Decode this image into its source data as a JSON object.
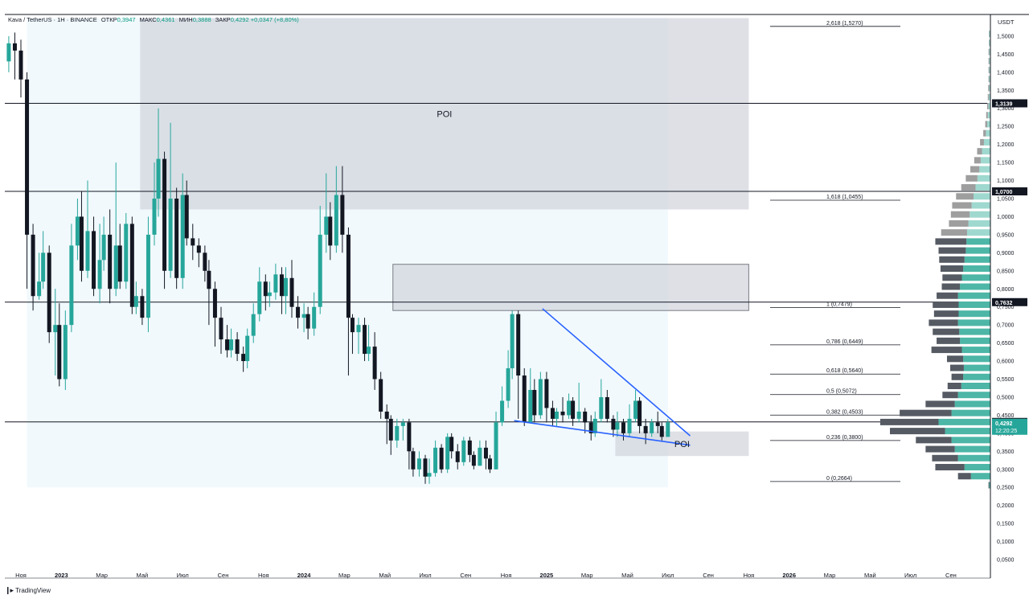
{
  "header": {
    "symbol": "Kava / TetherUS · 1H · BINANCE",
    "open_label": "ОТКР",
    "open": "0,3947",
    "high_label": "МАКС",
    "high": "0,4361",
    "low_label": "МИН",
    "low": "0,3888",
    "close_label": "ЗАКР",
    "close": "0,4292",
    "change": "+0,0347 (+8,80%)"
  },
  "currency": "USDT",
  "footer": {
    "brand": "TradingView"
  },
  "colors": {
    "up": "#26a69a",
    "down": "#131722",
    "trend": "#2962ff",
    "poi": "#d1d4dc",
    "highlight": "#e6f4fb"
  },
  "chart_data": {
    "type": "candlestick",
    "y_scale": {
      "min": 0.03,
      "max": 1.56
    },
    "y_ticks": [
      "0,0500",
      "0,1000",
      "0,1500",
      "0,2000",
      "0,2500",
      "0,3000",
      "0,3500",
      "0,4000",
      "0,4500",
      "0,5000",
      "0,5500",
      "0,6000",
      "0,6500",
      "0,7000",
      "0,7500",
      "0,8000",
      "0,8500",
      "0,9000",
      "0,9500",
      "1,0000",
      "1,0500",
      "1,1000",
      "1,1500",
      "1,2000",
      "1,2500",
      "1,3000",
      "1,3500",
      "1,4000",
      "1,4500",
      "1,5000"
    ],
    "y_tick_values": [
      0.05,
      0.1,
      0.15,
      0.2,
      0.25,
      0.3,
      0.35,
      0.4,
      0.45,
      0.5,
      0.55,
      0.6,
      0.65,
      0.7,
      0.75,
      0.8,
      0.85,
      0.9,
      0.95,
      1.0,
      1.05,
      1.1,
      1.15,
      1.2,
      1.25,
      1.3,
      1.35,
      1.4,
      1.45,
      1.5
    ],
    "x_ticks": [
      {
        "label": "Ноя",
        "m": 0
      },
      {
        "label": "2023",
        "m": 2
      },
      {
        "label": "Мар",
        "m": 4
      },
      {
        "label": "Май",
        "m": 6
      },
      {
        "label": "Июл",
        "m": 8
      },
      {
        "label": "Сен",
        "m": 10
      },
      {
        "label": "Ноя",
        "m": 12
      },
      {
        "label": "2024",
        "m": 14
      },
      {
        "label": "Мар",
        "m": 16
      },
      {
        "label": "Май",
        "m": 18
      },
      {
        "label": "Июл",
        "m": 20
      },
      {
        "label": "Сен",
        "m": 22
      },
      {
        "label": "Ноя",
        "m": 24
      },
      {
        "label": "2025",
        "m": 26
      },
      {
        "label": "Мар",
        "m": 28
      },
      {
        "label": "Май",
        "m": 30
      },
      {
        "label": "Июл",
        "m": 32
      },
      {
        "label": "Сен",
        "m": 34
      },
      {
        "label": "Ноя",
        "m": 36
      },
      {
        "label": "2026",
        "m": 38
      },
      {
        "label": "Мар",
        "m": 40
      },
      {
        "label": "Май",
        "m": 42
      },
      {
        "label": "Июл",
        "m": 44
      },
      {
        "label": "Сен",
        "m": 46
      }
    ],
    "bold_x_ticks": [
      "2023",
      "2024",
      "2025",
      "2026"
    ],
    "horizontal_lines": [
      {
        "value": 1.3139,
        "label": "1,3139"
      },
      {
        "value": 1.07,
        "label": "1,0700"
      },
      {
        "value": 0.7632,
        "label": "0,7632"
      },
      {
        "value": 0.4314,
        "label": "0,4314"
      }
    ],
    "current_price": {
      "value": 0.4292,
      "label": "0,4292",
      "countdown": "12:20:25"
    },
    "fib_levels": [
      {
        "value": 1.527,
        "label": "2,618 (1,5270)"
      },
      {
        "value": 1.0455,
        "label": "1,618 (1,0455)"
      },
      {
        "value": 0.7479,
        "label": "1 (0,7479)"
      },
      {
        "value": 0.6449,
        "label": "0,786 (0,6449)"
      },
      {
        "value": 0.564,
        "label": "0,618 (0,5640)"
      },
      {
        "value": 0.5072,
        "label": "0,5 (0,5072)"
      },
      {
        "value": 0.4503,
        "label": "0,382 (0,4503)"
      },
      {
        "value": 0.38,
        "label": "0,236 (0,3800)"
      },
      {
        "value": 0.2664,
        "label": "0 (0,2664)"
      }
    ],
    "zones": [
      {
        "name": "POI",
        "label": "POI",
        "m_from": 5.9,
        "m_to": 36,
        "top": 1.55,
        "bottom": 1.02
      },
      {
        "name": "resistance",
        "label": "",
        "m_from": 18.4,
        "m_to": 36,
        "top": 0.868,
        "bottom": 0.74
      },
      {
        "name": "POI-low",
        "label": "POI",
        "m_from": 29.4,
        "m_to": 36,
        "top": 0.405,
        "bottom": 0.337
      }
    ],
    "highlight_range": {
      "m_from": 0.3,
      "m_to": 32,
      "top": 1.55,
      "bottom": 0.25
    },
    "trendlines": [
      {
        "from": {
          "m": 25.8,
          "v": 0.745
        },
        "to": {
          "m": 33.1,
          "v": 0.393
        }
      },
      {
        "from": {
          "m": 24.4,
          "v": 0.435
        },
        "to": {
          "m": 33.1,
          "v": 0.367
        }
      }
    ],
    "candles": [
      [
        -0.6,
        1.43,
        1.48,
        1.5,
        1.4
      ],
      [
        -0.3,
        1.48,
        1.46,
        1.51,
        1.38
      ],
      [
        0,
        1.46,
        1.38,
        1.49,
        1.33
      ],
      [
        0.3,
        1.38,
        0.95,
        1.4,
        0.8
      ],
      [
        0.6,
        0.95,
        0.78,
        0.98,
        0.74
      ],
      [
        0.9,
        0.78,
        0.82,
        0.9,
        0.77
      ],
      [
        1.1,
        0.82,
        0.9,
        0.96,
        0.8
      ],
      [
        1.4,
        0.9,
        0.68,
        0.92,
        0.65
      ],
      [
        1.7,
        0.68,
        0.7,
        0.8,
        0.56
      ],
      [
        1.9,
        0.7,
        0.55,
        0.76,
        0.53
      ],
      [
        2.2,
        0.55,
        0.7,
        0.74,
        0.52
      ],
      [
        2.5,
        0.7,
        0.92,
        0.98,
        0.68
      ],
      [
        2.8,
        0.92,
        1.0,
        1.05,
        0.88
      ],
      [
        3.0,
        1.0,
        0.85,
        1.07,
        0.82
      ],
      [
        3.3,
        0.85,
        0.96,
        1.1,
        0.83
      ],
      [
        3.6,
        0.96,
        0.8,
        1.0,
        0.78
      ],
      [
        3.9,
        0.8,
        0.88,
        0.98,
        0.76
      ],
      [
        4.1,
        0.88,
        0.95,
        1.0,
        0.85
      ],
      [
        4.4,
        0.95,
        0.8,
        1.02,
        0.76
      ],
      [
        4.7,
        0.8,
        0.92,
        1.15,
        0.78
      ],
      [
        4.9,
        0.92,
        0.82,
        0.98,
        0.8
      ],
      [
        5.2,
        0.82,
        0.98,
        1.01,
        0.8
      ],
      [
        5.5,
        0.98,
        0.75,
        1.0,
        0.73
      ],
      [
        5.7,
        0.75,
        0.78,
        0.82,
        0.73
      ],
      [
        6.0,
        0.78,
        0.72,
        0.8,
        0.7
      ],
      [
        6.3,
        0.72,
        0.95,
        1.0,
        0.68
      ],
      [
        6.6,
        0.95,
        1.05,
        1.15,
        0.92
      ],
      [
        6.8,
        1.05,
        1.16,
        1.3,
        1.0
      ],
      [
        7.1,
        1.16,
        0.85,
        1.18,
        0.8
      ],
      [
        7.4,
        0.85,
        1.05,
        1.26,
        0.83
      ],
      [
        7.7,
        1.05,
        0.83,
        1.08,
        0.8
      ],
      [
        8.0,
        0.83,
        1.06,
        1.12,
        0.8
      ],
      [
        8.2,
        1.06,
        0.94,
        1.1,
        0.92
      ],
      [
        8.5,
        0.94,
        0.92,
        0.98,
        0.88
      ],
      [
        8.8,
        0.92,
        0.9,
        0.94,
        0.86
      ],
      [
        9.1,
        0.9,
        0.85,
        0.92,
        0.82
      ],
      [
        9.3,
        0.85,
        0.8,
        0.88,
        0.7
      ],
      [
        9.6,
        0.8,
        0.72,
        0.82,
        0.64
      ],
      [
        9.9,
        0.72,
        0.66,
        0.75,
        0.62
      ],
      [
        10.2,
        0.66,
        0.63,
        0.7,
        0.61
      ],
      [
        10.4,
        0.63,
        0.66,
        0.69,
        0.61
      ],
      [
        10.7,
        0.66,
        0.62,
        0.68,
        0.6
      ],
      [
        11.0,
        0.62,
        0.6,
        0.64,
        0.57
      ],
      [
        11.2,
        0.6,
        0.67,
        0.69,
        0.58
      ],
      [
        11.5,
        0.67,
        0.73,
        0.76,
        0.65
      ],
      [
        11.8,
        0.73,
        0.82,
        0.86,
        0.71
      ],
      [
        12.1,
        0.82,
        0.78,
        0.84,
        0.74
      ],
      [
        12.3,
        0.78,
        0.79,
        0.82,
        0.75
      ],
      [
        12.6,
        0.79,
        0.84,
        0.87,
        0.77
      ],
      [
        12.9,
        0.84,
        0.78,
        0.86,
        0.73
      ],
      [
        13.1,
        0.78,
        0.83,
        0.86,
        0.73
      ],
      [
        13.4,
        0.83,
        0.75,
        0.88,
        0.72
      ],
      [
        13.7,
        0.75,
        0.72,
        0.78,
        0.69
      ],
      [
        14.0,
        0.72,
        0.73,
        0.76,
        0.68
      ],
      [
        14.2,
        0.73,
        0.69,
        0.75,
        0.66
      ],
      [
        14.5,
        0.69,
        0.75,
        0.79,
        0.67
      ],
      [
        14.8,
        0.75,
        0.95,
        1.03,
        0.73
      ],
      [
        15.1,
        0.95,
        1.0,
        1.12,
        0.9
      ],
      [
        15.3,
        1.0,
        0.92,
        1.04,
        0.88
      ],
      [
        15.6,
        0.92,
        1.06,
        1.14,
        0.9
      ],
      [
        15.9,
        1.06,
        0.95,
        1.14,
        0.9
      ],
      [
        16.2,
        0.95,
        0.72,
        0.97,
        0.56
      ],
      [
        16.4,
        0.72,
        0.68,
        0.73,
        0.62
      ],
      [
        16.7,
        0.68,
        0.7,
        0.72,
        0.62
      ],
      [
        17.0,
        0.7,
        0.62,
        0.72,
        0.6
      ],
      [
        17.2,
        0.62,
        0.64,
        0.7,
        0.6
      ],
      [
        17.5,
        0.64,
        0.55,
        0.68,
        0.52
      ],
      [
        17.8,
        0.55,
        0.46,
        0.57,
        0.44
      ],
      [
        18.1,
        0.46,
        0.44,
        0.48,
        0.37
      ],
      [
        18.3,
        0.44,
        0.38,
        0.45,
        0.34
      ],
      [
        18.6,
        0.38,
        0.42,
        0.44,
        0.36
      ],
      [
        18.9,
        0.42,
        0.43,
        0.44,
        0.38
      ],
      [
        19.2,
        0.43,
        0.35,
        0.44,
        0.3
      ],
      [
        19.4,
        0.35,
        0.3,
        0.36,
        0.28
      ],
      [
        19.7,
        0.3,
        0.33,
        0.35,
        0.28
      ],
      [
        20.0,
        0.33,
        0.28,
        0.34,
        0.26
      ],
      [
        20.2,
        0.28,
        0.29,
        0.33,
        0.26
      ],
      [
        20.5,
        0.29,
        0.36,
        0.38,
        0.28
      ],
      [
        20.8,
        0.36,
        0.3,
        0.37,
        0.29
      ],
      [
        21.1,
        0.3,
        0.39,
        0.4,
        0.29
      ],
      [
        21.3,
        0.39,
        0.35,
        0.4,
        0.33
      ],
      [
        21.6,
        0.35,
        0.32,
        0.37,
        0.3
      ],
      [
        21.9,
        0.32,
        0.38,
        0.39,
        0.31
      ],
      [
        22.2,
        0.38,
        0.34,
        0.39,
        0.32
      ],
      [
        22.4,
        0.34,
        0.31,
        0.35,
        0.3
      ],
      [
        22.7,
        0.31,
        0.36,
        0.38,
        0.31
      ],
      [
        23.0,
        0.36,
        0.33,
        0.38,
        0.3
      ],
      [
        23.2,
        0.33,
        0.3,
        0.34,
        0.29
      ],
      [
        23.5,
        0.3,
        0.43,
        0.46,
        0.3
      ],
      [
        23.8,
        0.43,
        0.49,
        0.53,
        0.42
      ],
      [
        24.1,
        0.49,
        0.58,
        0.63,
        0.47
      ],
      [
        24.3,
        0.58,
        0.73,
        0.74,
        0.55
      ],
      [
        24.6,
        0.73,
        0.56,
        0.74,
        0.44
      ],
      [
        24.9,
        0.56,
        0.43,
        0.58,
        0.42
      ],
      [
        25.2,
        0.43,
        0.52,
        0.58,
        0.43
      ],
      [
        25.4,
        0.52,
        0.45,
        0.55,
        0.43
      ],
      [
        25.7,
        0.45,
        0.55,
        0.57,
        0.44
      ],
      [
        26.0,
        0.55,
        0.47,
        0.57,
        0.43
      ],
      [
        26.3,
        0.47,
        0.44,
        0.49,
        0.42
      ],
      [
        26.5,
        0.44,
        0.46,
        0.47,
        0.42
      ],
      [
        26.8,
        0.46,
        0.45,
        0.5,
        0.43
      ],
      [
        27.1,
        0.45,
        0.49,
        0.51,
        0.44
      ],
      [
        27.3,
        0.49,
        0.44,
        0.5,
        0.42
      ],
      [
        27.6,
        0.44,
        0.46,
        0.54,
        0.43
      ],
      [
        27.9,
        0.46,
        0.43,
        0.47,
        0.4
      ],
      [
        28.2,
        0.43,
        0.4,
        0.45,
        0.38
      ],
      [
        28.4,
        0.4,
        0.44,
        0.46,
        0.39
      ],
      [
        28.7,
        0.44,
        0.5,
        0.55,
        0.43
      ],
      [
        29.0,
        0.5,
        0.44,
        0.52,
        0.43
      ],
      [
        29.3,
        0.44,
        0.41,
        0.45,
        0.39
      ],
      [
        29.5,
        0.41,
        0.43,
        0.46,
        0.39
      ],
      [
        29.8,
        0.43,
        0.4,
        0.44,
        0.38
      ],
      [
        30.1,
        0.4,
        0.44,
        0.48,
        0.39
      ],
      [
        30.4,
        0.44,
        0.49,
        0.52,
        0.43
      ],
      [
        30.6,
        0.49,
        0.42,
        0.5,
        0.4
      ],
      [
        30.9,
        0.42,
        0.4,
        0.44,
        0.37
      ],
      [
        31.2,
        0.4,
        0.43,
        0.44,
        0.39
      ],
      [
        31.5,
        0.43,
        0.42,
        0.46,
        0.4
      ],
      [
        31.7,
        0.42,
        0.39,
        0.43,
        0.38
      ],
      [
        32.0,
        0.39,
        0.43,
        0.44,
        0.39
      ]
    ],
    "volume_profile": [
      [
        1.505,
        0.004,
        0.001
      ],
      [
        1.48,
        0.004,
        0.001
      ],
      [
        1.455,
        0.004,
        0.002
      ],
      [
        1.43,
        0.004,
        0.002
      ],
      [
        1.405,
        0.004,
        0.002
      ],
      [
        1.38,
        0.004,
        0.002
      ],
      [
        1.355,
        0.004,
        0.003
      ],
      [
        1.33,
        0.005,
        0.003
      ],
      [
        1.305,
        0.006,
        0.004
      ],
      [
        1.28,
        0.008,
        0.005
      ],
      [
        1.255,
        0.01,
        0.006
      ],
      [
        1.23,
        0.014,
        0.008
      ],
      [
        1.205,
        0.02,
        0.012
      ],
      [
        1.18,
        0.026,
        0.015
      ],
      [
        1.155,
        0.03,
        0.02
      ],
      [
        1.13,
        0.034,
        0.028
      ],
      [
        1.105,
        0.04,
        0.036
      ],
      [
        1.08,
        0.046,
        0.044
      ],
      [
        1.055,
        0.052,
        0.054
      ],
      [
        1.03,
        0.058,
        0.06
      ],
      [
        1.005,
        0.064,
        0.058
      ],
      [
        0.98,
        0.068,
        0.06
      ],
      [
        0.955,
        0.072,
        0.08
      ],
      [
        0.93,
        0.074,
        0.096
      ],
      [
        0.905,
        0.076,
        0.084
      ],
      [
        0.88,
        0.08,
        0.078
      ],
      [
        0.855,
        0.084,
        0.07
      ],
      [
        0.83,
        0.088,
        0.06
      ],
      [
        0.805,
        0.094,
        0.056
      ],
      [
        0.78,
        0.1,
        0.066
      ],
      [
        0.755,
        0.098,
        0.08
      ],
      [
        0.73,
        0.098,
        0.076
      ],
      [
        0.705,
        0.1,
        0.09
      ],
      [
        0.68,
        0.096,
        0.082
      ],
      [
        0.655,
        0.094,
        0.072
      ],
      [
        0.63,
        0.088,
        0.094
      ],
      [
        0.605,
        0.084,
        0.05
      ],
      [
        0.58,
        0.082,
        0.042
      ],
      [
        0.555,
        0.084,
        0.036
      ],
      [
        0.53,
        0.09,
        0.042
      ],
      [
        0.505,
        0.1,
        0.048
      ],
      [
        0.48,
        0.11,
        0.09
      ],
      [
        0.455,
        0.12,
        0.16
      ],
      [
        0.43,
        0.16,
        0.18
      ],
      [
        0.405,
        0.14,
        0.17
      ],
      [
        0.38,
        0.12,
        0.11
      ],
      [
        0.355,
        0.11,
        0.09
      ],
      [
        0.33,
        0.1,
        0.08
      ],
      [
        0.305,
        0.08,
        0.09
      ],
      [
        0.28,
        0.06,
        0.04
      ],
      [
        0.255,
        0.004,
        0.002
      ]
    ]
  }
}
